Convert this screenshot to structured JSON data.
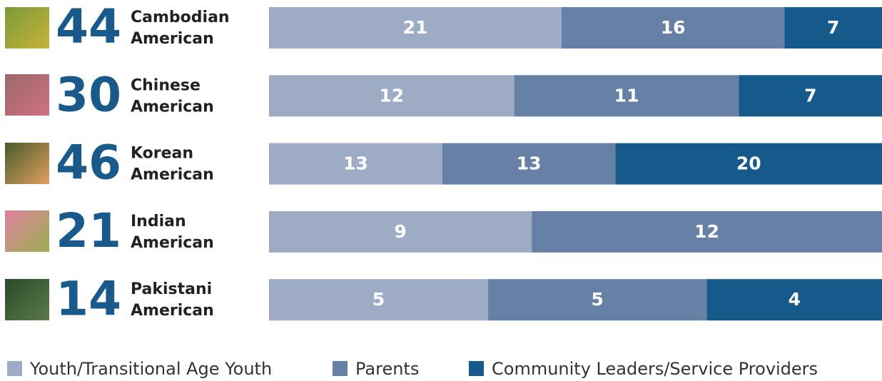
{
  "chart_data": {
    "type": "stacked-bar-100",
    "categories": [
      "Cambodian American",
      "Chinese American",
      "Korean American",
      "Indian American",
      "Pakistani American"
    ],
    "totals": [
      44,
      30,
      46,
      21,
      14
    ],
    "series": [
      {
        "name": "Youth/Transitional Age Youth",
        "color": "#9eabc5",
        "values": [
          21,
          12,
          13,
          9,
          5
        ]
      },
      {
        "name": "Parents",
        "color": "#6680a6",
        "values": [
          16,
          11,
          13,
          12,
          5
        ]
      },
      {
        "name": "Community Leaders/Service Providers",
        "color": "#155a8a",
        "values": [
          7,
          7,
          20,
          null,
          4
        ]
      }
    ],
    "legend": "bottom"
  }
}
